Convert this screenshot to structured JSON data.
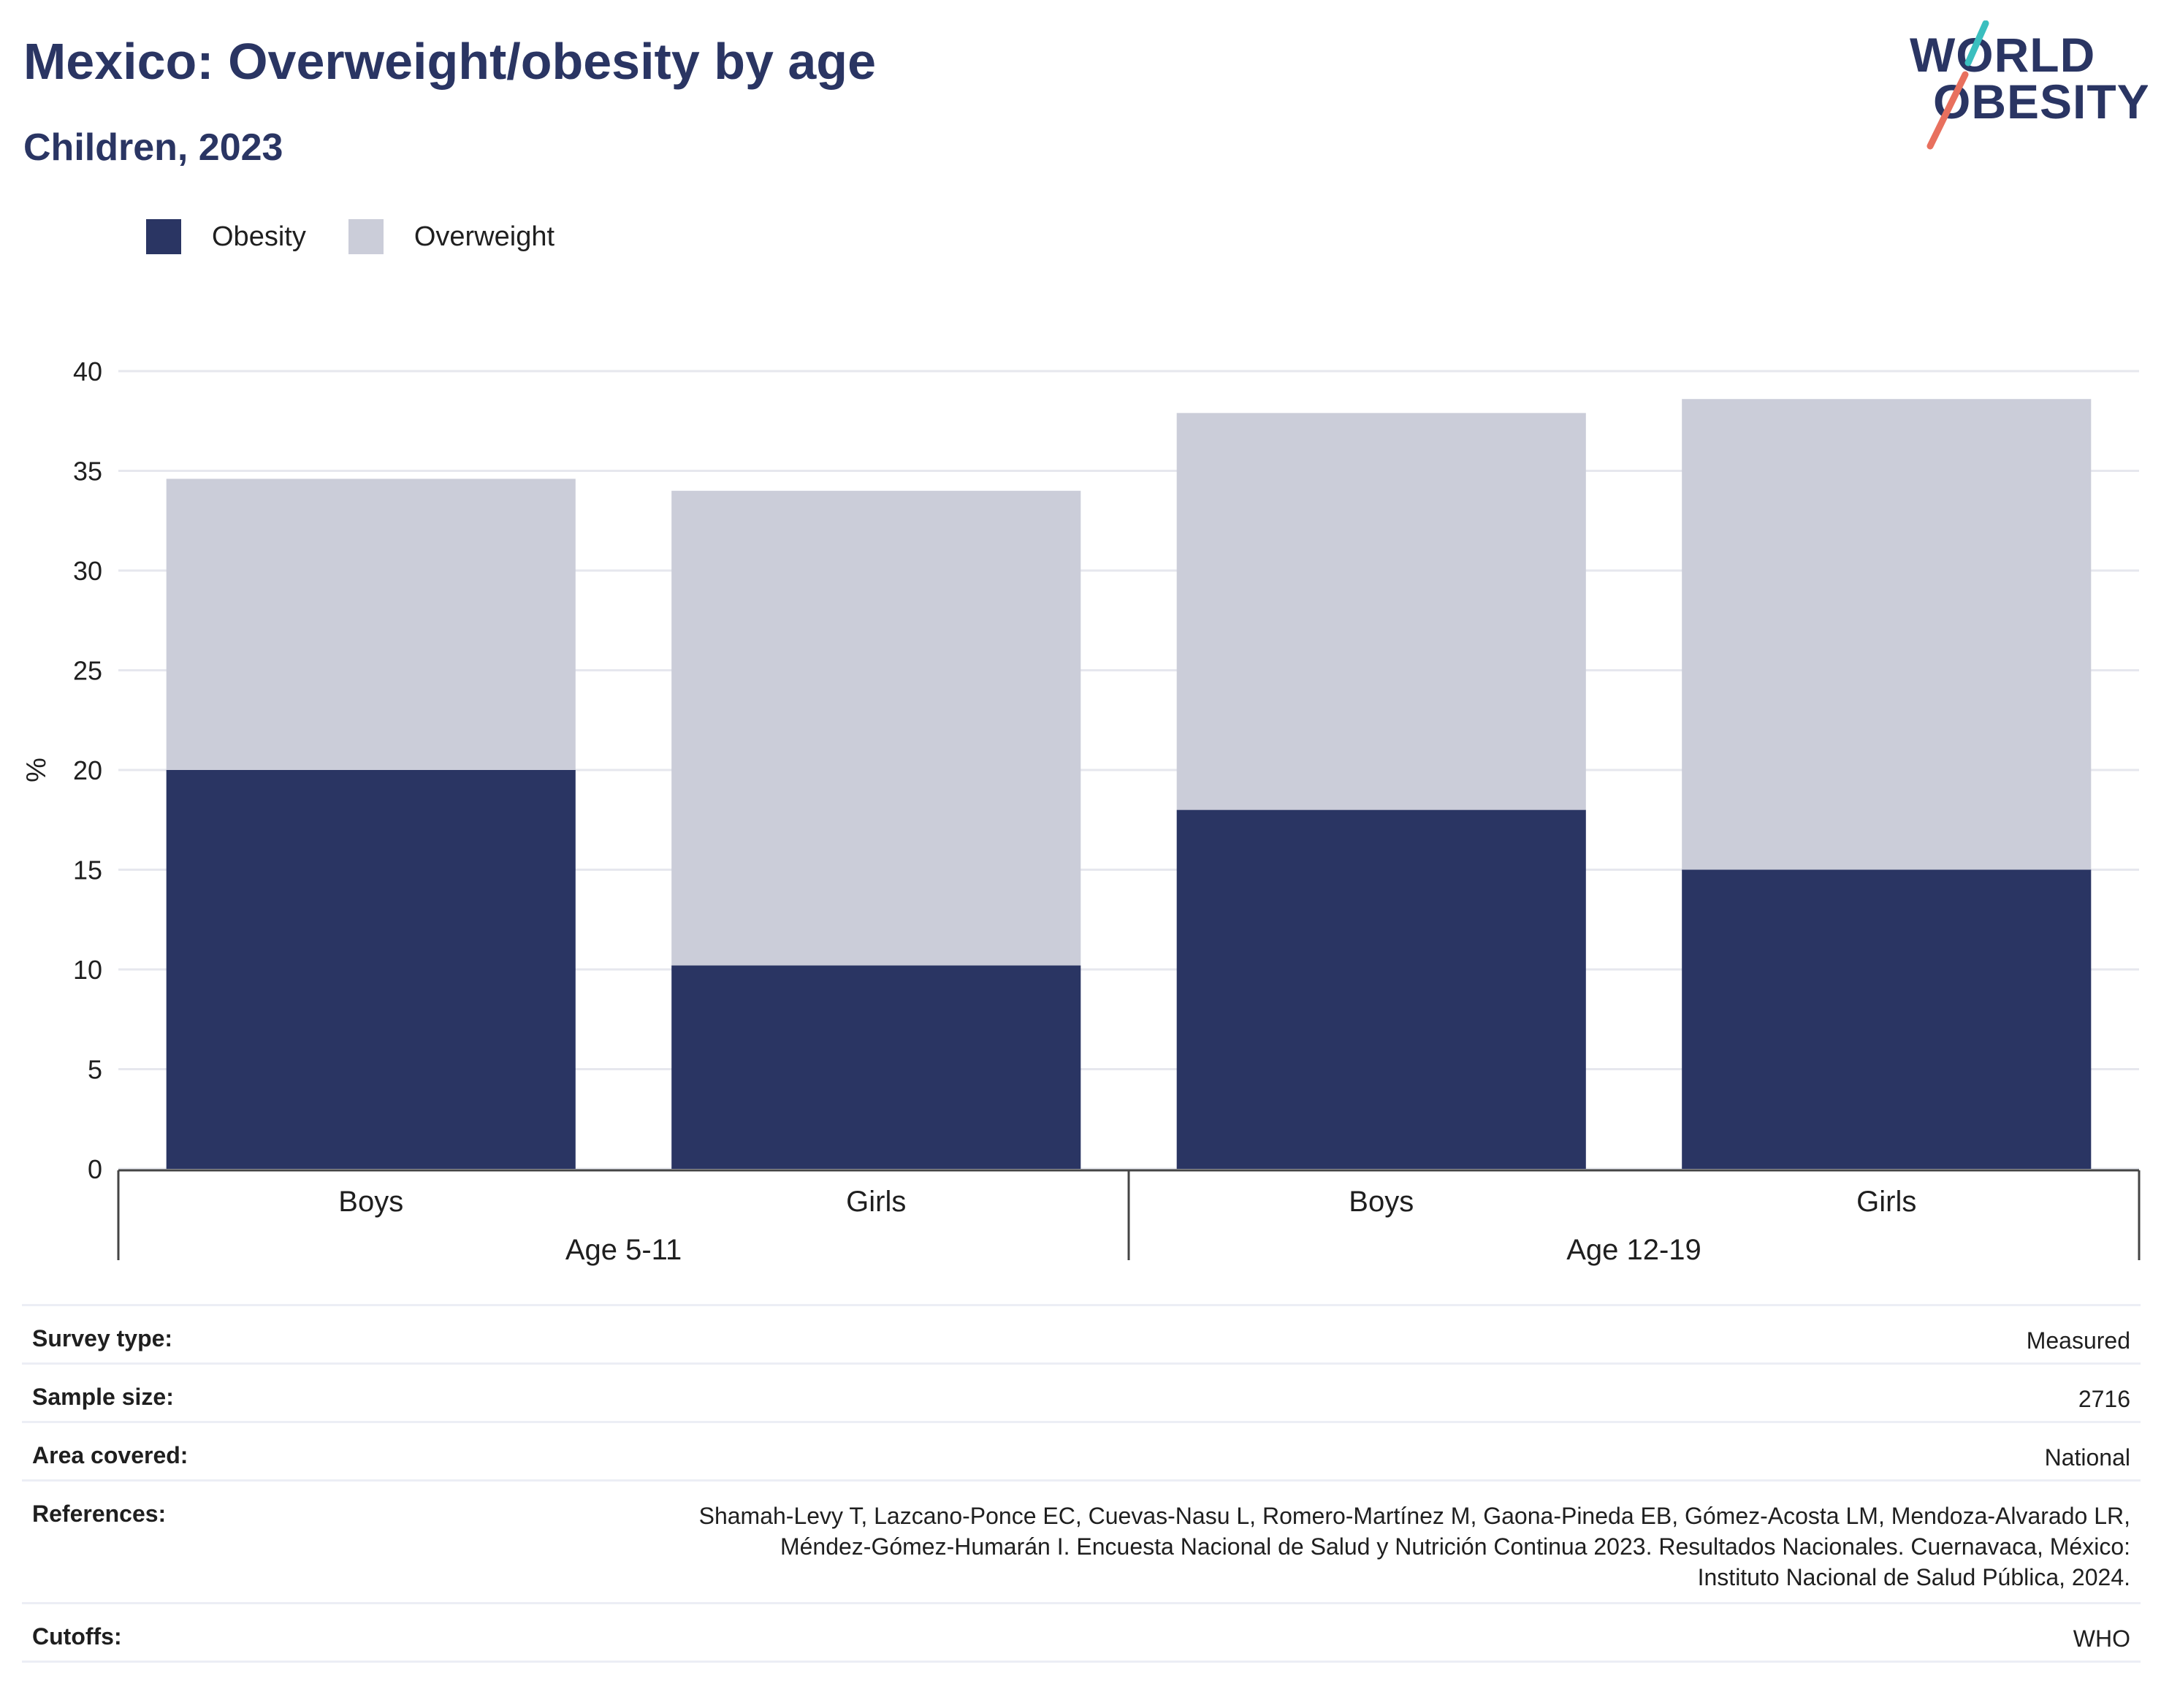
{
  "header": {
    "title": "Mexico: Overweight/obesity by age",
    "subtitle": "Children, 2023"
  },
  "logo": {
    "line1": "WORLD",
    "line2": "OBESITY",
    "colors": {
      "text": "#2a3563",
      "slash_top": "#3bbfbf",
      "slash_bottom": "#e8705e"
    }
  },
  "legend": {
    "items": [
      {
        "label": "Obesity",
        "color": "#2a3563"
      },
      {
        "label": "Overweight",
        "color": "#cbcdd9"
      }
    ]
  },
  "chart_data": {
    "type": "bar",
    "stacked": true,
    "ylabel": "%",
    "ylim": [
      0,
      40
    ],
    "yticks": [
      0,
      5,
      10,
      15,
      20,
      25,
      30,
      35,
      40
    ],
    "grid": true,
    "legend_position": "top-left",
    "categories": [
      "Boys",
      "Girls",
      "Boys",
      "Girls"
    ],
    "groups": [
      {
        "label": "Age 5-11",
        "categories": [
          "Boys",
          "Girls"
        ]
      },
      {
        "label": "Age 12-19",
        "categories": [
          "Boys",
          "Girls"
        ]
      }
    ],
    "series": [
      {
        "name": "Obesity",
        "color": "#2a3563",
        "values": [
          20.0,
          10.2,
          18.0,
          15.0
        ]
      },
      {
        "name": "Overweight",
        "color": "#cbcdd9",
        "values": [
          14.6,
          23.8,
          19.9,
          23.6
        ]
      }
    ]
  },
  "metadata": [
    {
      "key": "Survey type:",
      "value": "Measured"
    },
    {
      "key": "Sample size:",
      "value": "2716"
    },
    {
      "key": "Area covered:",
      "value": "National"
    },
    {
      "key": "References:",
      "value_lines": [
        "Shamah-Levy T, Lazcano-Ponce EC, Cuevas-Nasu L, Romero-Martínez M, Gaona-Pineda EB, Gómez-Acosta LM, Mendoza-Alvarado LR,",
        "Méndez-Gómez-Humarán I. Encuesta Nacional de Salud y Nutrición Continua 2023. Resultados Nacionales. Cuernavaca, México:",
        "Instituto Nacional de Salud Pública, 2024."
      ]
    },
    {
      "key": "Cutoffs:",
      "value": "WHO"
    }
  ]
}
